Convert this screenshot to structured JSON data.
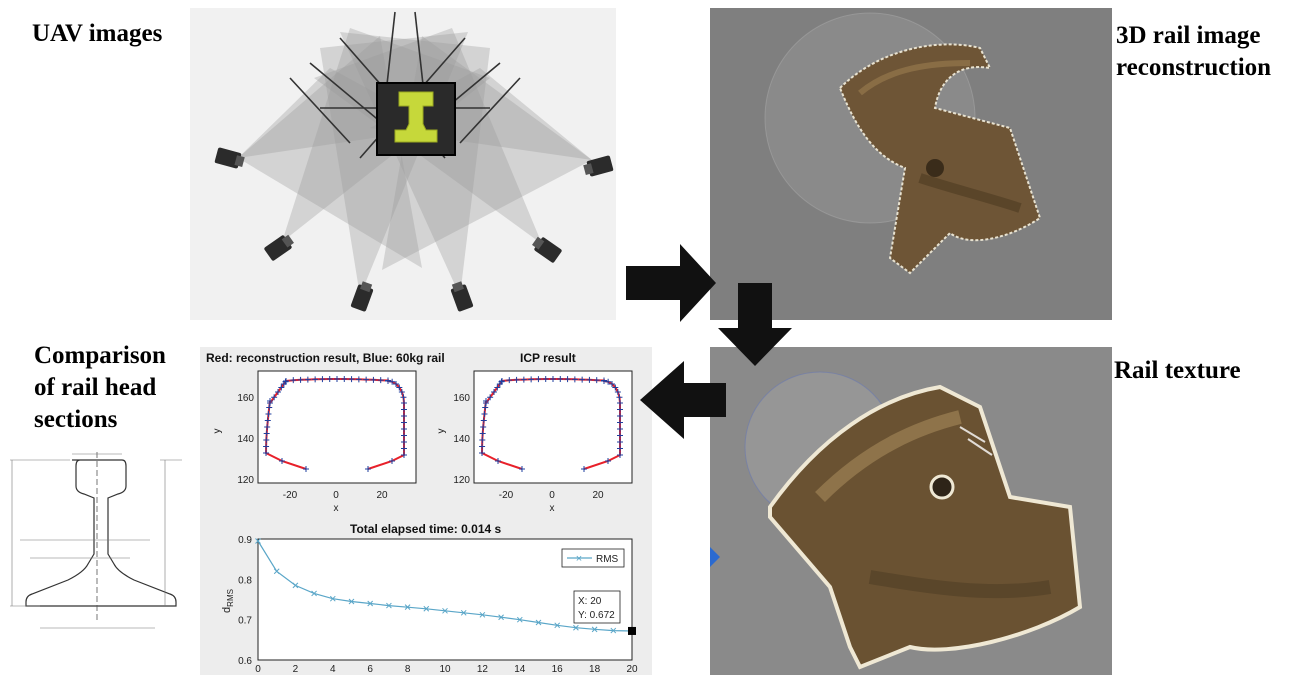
{
  "labels": {
    "uav": "UAV images",
    "recon": "3D rail image\nreconstruction",
    "texture": "Rail texture",
    "comparison": "Comparison\nof rail head\nsections"
  },
  "colors": {
    "reconstruction": "#e8202a",
    "rail60kg": "#1f3f9f",
    "rms_line": "#5aa6c8",
    "rail_icon": "#c6d83a",
    "arrow": "#111111",
    "scene_bg": "#808080",
    "rust": "#6e5536"
  },
  "icons": [
    "camera-icon",
    "rail-profile-icon",
    "arrow-right-icon",
    "arrow-down-icon",
    "arrow-left-icon"
  ],
  "section_plots": {
    "left_title": "Red: reconstruction result, Blue: 60kg rail",
    "right_title": "ICP result",
    "xlabel": "x",
    "ylabel": "y",
    "x_ticks": [
      "-20",
      "0",
      "20"
    ],
    "y_ticks": [
      "120",
      "140",
      "160"
    ],
    "right_x_ticks": [
      "-20",
      "0",
      "20"
    ],
    "right_y_ticks": [
      "120",
      "140",
      "160"
    ]
  },
  "rms_plot": {
    "title": "Total elapsed time: 0.014 s",
    "ylabel": "d",
    "ylabel_sub": "RMS",
    "legend": "RMS",
    "tooltip_x": "X: 20",
    "tooltip_y": "Y: 0.672",
    "x_ticks": [
      "0",
      "2",
      "4",
      "6",
      "8",
      "10",
      "12",
      "14",
      "16",
      "18",
      "20"
    ],
    "y_ticks": [
      "0.6",
      "0.7",
      "0.8",
      "0.9"
    ]
  },
  "chart_data": [
    {
      "type": "line",
      "title": "Total elapsed time: 0.014 s",
      "xlabel": "",
      "ylabel": "dRMS",
      "xlim": [
        0,
        20
      ],
      "ylim": [
        0.6,
        0.9
      ],
      "series": [
        {
          "name": "RMS",
          "x": [
            0,
            1,
            2,
            3,
            4,
            5,
            6,
            7,
            8,
            9,
            10,
            11,
            12,
            13,
            14,
            15,
            16,
            17,
            18,
            19,
            20
          ],
          "values": [
            0.895,
            0.82,
            0.785,
            0.765,
            0.752,
            0.745,
            0.74,
            0.735,
            0.731,
            0.727,
            0.722,
            0.717,
            0.712,
            0.706,
            0.7,
            0.693,
            0.686,
            0.68,
            0.676,
            0.673,
            0.672
          ]
        }
      ],
      "legend": "top-right"
    }
  ]
}
